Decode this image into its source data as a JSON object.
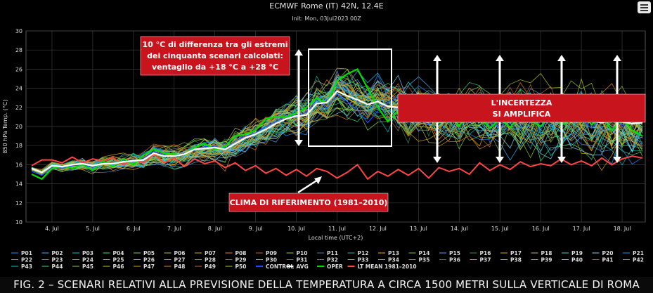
{
  "header": {
    "title": "ECMWF Rome (IT) 42N, 12.4E",
    "subtitle": "Init: Mon, 03Jul2023 00Z"
  },
  "caption": "FIG. 2 – SCENARI RELATIVI ALLA PREVISIONE DELLA TEMPERATURA A CIRCA 1500 METRI SULLA VERTICALE DI ROMA",
  "annotations": {
    "box1": [
      "10 °C di differenza tra gli estremi",
      "dei cinquanta scenari calcolati:",
      "ventaglio da +18 °C a +28 °C"
    ],
    "box2": [
      "L'INCERTEZZA",
      "SI AMPLIFICA"
    ],
    "box3": "CLIMA DI RIFERIMENTO (1981–2010)"
  },
  "colors": {
    "oper": "#00dd00",
    "avg": "#ffffff",
    "ltmean": "#ff4444",
    "annotation_box": "#c8141c"
  },
  "chart_data": {
    "type": "line",
    "xlabel": "Local time (UTC+2)",
    "ylabel": "850 hPa Temp. (°C)",
    "ylim": [
      10,
      30
    ],
    "yticks": [
      10,
      12,
      14,
      16,
      18,
      20,
      22,
      24,
      26,
      28,
      30
    ],
    "xticks": [
      "4. Jul",
      "5. Jul",
      "6. Jul",
      "7. Jul",
      "8. Jul",
      "9. Jul",
      "10. Jul",
      "11. Jul",
      "12. Jul",
      "13. Jul",
      "14. Jul",
      "15. Jul",
      "16. Jul",
      "17. Jul",
      "18. Jul"
    ],
    "x_start_label": "3. Jul 12:00",
    "x_step_hours": 6,
    "grid": true,
    "series": [
      {
        "name": "AVG",
        "values": [
          15.6,
          15.2,
          15.9,
          15.8,
          16,
          16.1,
          15.9,
          16.1,
          16.1,
          16.3,
          16.4,
          16.5,
          17.2,
          16.9,
          16.9,
          17.1,
          17.6,
          17.7,
          17.8,
          17.6,
          18.2,
          18.8,
          19.2,
          19.7,
          20.3,
          20.8,
          21.1,
          21.2,
          22.4,
          22.5,
          23.7,
          23.2,
          22.8,
          22.3,
          22.6,
          22.1,
          22.0,
          21.5,
          21.8,
          21.3,
          21.0,
          21.2,
          20.9,
          21.3,
          21.1,
          20.8,
          21.0,
          20.9,
          20.7,
          21.0,
          20.6,
          20.8,
          20.7,
          20.5,
          20.9,
          20.6,
          20.4,
          20.7,
          20.5,
          20.3,
          20.4
        ]
      },
      {
        "name": "OPER",
        "values": [
          15.0,
          14.5,
          15.6,
          15.9,
          15.6,
          16.0,
          15.4,
          16.4,
          15.8,
          16.6,
          16.0,
          17.0,
          17.6,
          17.2,
          17.1,
          17.0,
          17.8,
          18.2,
          17.6,
          17.9,
          19.0,
          19.2,
          19.6,
          20.8,
          21.0,
          21.0,
          21.4,
          22.0,
          23.0,
          22.4,
          24.8,
          25.5,
          26.0,
          24.0,
          22.0,
          20.5,
          21.6,
          21.2,
          22.6,
          20.9,
          20.4,
          21.2,
          20.0,
          21.6,
          21.0,
          19.8,
          20.8,
          19.9,
          21.2,
          20.6,
          20.0,
          21.2,
          20.2,
          20.6,
          21.4,
          20.2,
          21.0,
          19.6,
          20.8,
          19.6,
          19.0
        ]
      },
      {
        "name": "LT MEAN 1981–2010",
        "values": [
          15.9,
          16.5,
          16.5,
          16.2,
          16.8,
          16.2,
          16.6,
          16.4,
          16.7,
          16.0,
          16.5,
          16.2,
          17.1,
          16.2,
          16.7,
          15.8,
          16.6,
          16.1,
          16.4,
          15.7,
          16.2,
          15.4,
          15.9,
          15.1,
          15.6,
          14.9,
          15.5,
          14.8,
          15.6,
          15.3,
          14.6,
          15.2,
          16.0,
          14.5,
          15.3,
          14.8,
          15.5,
          14.9,
          15.6,
          14.6,
          15.7,
          15.3,
          15.6,
          15.0,
          16.2,
          15.4,
          16.0,
          15.5,
          16.3,
          15.8,
          16.1,
          15.9,
          16.6,
          16.0,
          16.4,
          15.9,
          16.7,
          16.0,
          16.6,
          16.9,
          16.7
        ]
      },
      {
        "name": "CONTROL",
        "values": [
          15.3,
          14.9,
          15.7,
          15.6,
          15.9,
          16.0,
          15.7,
          16.2,
          16.0,
          16.5,
          16.3,
          16.7,
          17.4,
          17.0,
          16.8,
          17.2,
          17.5,
          17.9,
          17.9,
          17.7,
          18.5,
          19.0,
          19.3,
          20.0,
          20.5,
          21.2,
          21.0,
          21.5,
          22.8,
          21.9,
          23.4,
          22.6,
          21.7,
          20.4,
          21.6,
          22.5,
          23.1,
          21.9,
          20.8,
          20.2,
          21.4,
          22.3,
          21.0,
          20.4,
          21.7,
          20.9,
          19.8,
          21.3,
          22.0,
          20.8,
          19.9,
          21.0,
          20.3,
          21.5,
          20.7,
          19.8,
          20.9,
          21.4,
          20.0,
          20.6,
          21.1
        ]
      }
    ],
    "ensemble_members": [
      "P01",
      "P02",
      "P03",
      "P04",
      "P05",
      "P06",
      "P07",
      "P08",
      "P09",
      "P10",
      "P11",
      "P12",
      "P13",
      "P14",
      "P15",
      "P16",
      "P17",
      "P18",
      "P19",
      "P20",
      "P21",
      "P22",
      "P23",
      "P24",
      "P25",
      "P26",
      "P27",
      "P28",
      "P29",
      "P30",
      "P31",
      "P32",
      "P33",
      "P34",
      "P35",
      "P36",
      "P37",
      "P38",
      "P39",
      "P40",
      "P41",
      "P42",
      "P43",
      "P44",
      "P45",
      "P46",
      "P47",
      "P48",
      "P49",
      "P50"
    ],
    "legend": [
      "P01",
      "P02",
      "P03",
      "P04",
      "P05",
      "P06",
      "P07",
      "P08",
      "P09",
      "P10",
      "P11",
      "P12",
      "P13",
      "P14",
      "P15",
      "P16",
      "P17",
      "P18",
      "P19",
      "P20",
      "P21",
      "P22",
      "P23",
      "P24",
      "P25",
      "P26",
      "P27",
      "P28",
      "P29",
      "P30",
      "P31",
      "P32",
      "P33",
      "P34",
      "P35",
      "P36",
      "P37",
      "P38",
      "P39",
      "P40",
      "P41",
      "P42",
      "P43",
      "P44",
      "P45",
      "P46",
      "P47",
      "P48",
      "P49",
      "P50",
      "CONTROL",
      "AVG",
      "OPER",
      "LT MEAN 1981–2010"
    ],
    "legend_position": "bottom"
  }
}
